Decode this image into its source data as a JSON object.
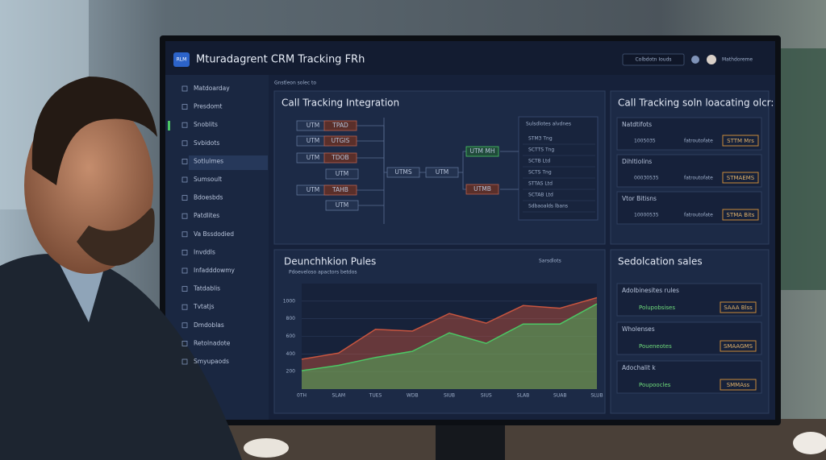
{
  "header": {
    "logo": "RLM",
    "title": "Mturadagrent CRM Tracking FRh",
    "search": "Colbdotn Iouds",
    "user": "Mathdoreme"
  },
  "breadcrumb": "Gnstleon solec to",
  "sidebar": [
    "Matdoarday",
    "Presdomt",
    "Snoblits",
    "Svbidots",
    "Sotlulmes",
    "Sumsoult",
    "Bdoesbds",
    "Patdlites",
    "Va Bssdodied",
    "Invddls",
    "Infadddowmy",
    "Tatdablis",
    "Tvtatjs",
    "Dmdoblas",
    "Retolnadote",
    "Smyupaods"
  ],
  "integration": {
    "title": "Call Tracking Integration",
    "nodes": [
      "UTM",
      "TPAD",
      "UTM",
      "UTGIS",
      "UTM",
      "TDOB",
      "UTM",
      "UTM",
      "TAHB",
      "UTM",
      "UTMS",
      "UTM",
      "UTM MH",
      "UTMB"
    ],
    "list_title": "Sulsdlotes alvdnes",
    "list": [
      "STM3 Tng",
      "SCTTS Tng",
      "SCTB Ltd",
      "SCTS Tng",
      "STTAS Ltd",
      "SCTAB Ltd",
      "Sdbaoalds lbans"
    ]
  },
  "locating": {
    "title": "Call Tracking soln loacating olcr:",
    "cards": [
      {
        "name": "Natdtifots",
        "number": "1005035",
        "status": "fatroutofate",
        "badge": "STTM Mrs"
      },
      {
        "name": "Dihltiolins",
        "number": "00030535",
        "status": "fatroutofate",
        "badge": "STMAEMS"
      },
      {
        "name": "Vtor Bitisns",
        "number": "10000535",
        "status": "fatroutofate",
        "badge": "STMA Bits"
      }
    ]
  },
  "chart": {
    "type": "area",
    "title": "Deunchhkion Pules",
    "subtitle": "Pdoeveloso apactors betdos",
    "legend": "Sarsdlots",
    "categories": [
      "0TH",
      "SLAM",
      "TUES",
      "WDB",
      "SIUB",
      "SIUS",
      "SLAB",
      "SUAB",
      "SLUB"
    ],
    "ylim": [
      0,
      1200
    ],
    "yticks": [
      200,
      400,
      600,
      800,
      1000
    ],
    "series": [
      {
        "color": "#c8553f",
        "values": [
          340,
          410,
          680,
          660,
          860,
          750,
          950,
          920,
          1040
        ]
      },
      {
        "color": "#4cc764",
        "values": [
          210,
          270,
          360,
          430,
          640,
          520,
          740,
          740,
          970
        ]
      }
    ]
  },
  "sales": {
    "title": "Sedolcation sales",
    "cards": [
      {
        "name": "Adolbinesites rules",
        "value": "Polupobsises",
        "badge": "SAAA Blss"
      },
      {
        "name": "Wholenses",
        "value": "Poueneotes",
        "badge": "SMAAGMS"
      },
      {
        "name": "Adochalit k",
        "value": "Poupoocles",
        "badge": "SMMAss"
      }
    ]
  }
}
